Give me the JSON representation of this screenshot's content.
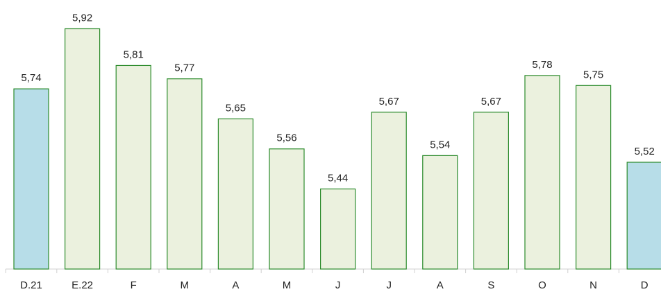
{
  "chart_data": {
    "type": "bar",
    "categories": [
      "D.21",
      "E.22",
      "F",
      "M",
      "A",
      "M",
      "J",
      "J",
      "A",
      "S",
      "O",
      "N",
      "D"
    ],
    "values": [
      5.74,
      5.92,
      5.81,
      5.77,
      5.65,
      5.56,
      5.44,
      5.67,
      5.54,
      5.67,
      5.78,
      5.75,
      5.52
    ],
    "value_labels": [
      "5,74",
      "5,92",
      "5,81",
      "5,77",
      "5,65",
      "5,56",
      "5,44",
      "5,67",
      "5,54",
      "5,67",
      "5,78",
      "5,75",
      "5,52"
    ],
    "colors": [
      "#b7dde8",
      "#ebf1de",
      "#ebf1de",
      "#ebf1de",
      "#ebf1de",
      "#ebf1de",
      "#ebf1de",
      "#ebf1de",
      "#ebf1de",
      "#ebf1de",
      "#ebf1de",
      "#ebf1de",
      "#b7dde8"
    ],
    "edge_color": "#2a8a2a",
    "ylim": [
      5.2,
      6.0
    ]
  }
}
